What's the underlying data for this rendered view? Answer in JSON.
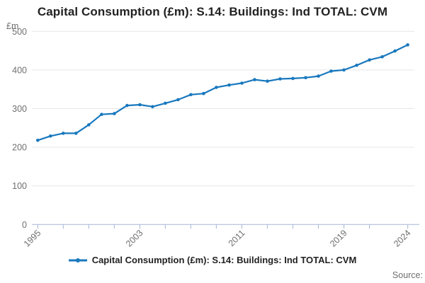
{
  "title": "Capital Consumption (£m): S.14: Buildings: Ind TOTAL: CVM",
  "y_unit": "£m",
  "legend": {
    "label": "Capital Consumption (£m): S.14: Buildings: Ind TOTAL: CVM"
  },
  "source": "Source:",
  "colors": {
    "line": "#1878be",
    "grid": "#e6e6e6",
    "axis": "#b0c0da",
    "tick_text": "#6f6f6f",
    "title_text": "#222222",
    "background": "#ffffff"
  },
  "chart_data": {
    "type": "line",
    "title": "Capital Consumption (£m): S.14: Buildings: Ind TOTAL: CVM",
    "series_name": "Capital Consumption (£m): S.14: Buildings: Ind TOTAL: CVM",
    "ylabel": "£m",
    "xlabel": "",
    "ylim": [
      0,
      500
    ],
    "y_ticks": [
      0,
      100,
      200,
      300,
      400,
      500
    ],
    "x_tick_years": [
      1995,
      1997,
      1999,
      2001,
      2003,
      2005,
      2007,
      2009,
      2011,
      2013,
      2015,
      2017,
      2019,
      2021,
      2024
    ],
    "x_label_years": [
      1995,
      2003,
      2011,
      2019,
      2024
    ],
    "grid": "horizontal",
    "legend_position": "bottom",
    "x": [
      1995,
      1996,
      1997,
      1998,
      1999,
      2000,
      2001,
      2002,
      2003,
      2004,
      2005,
      2006,
      2007,
      2008,
      2009,
      2010,
      2011,
      2012,
      2013,
      2014,
      2015,
      2016,
      2017,
      2018,
      2019,
      2020,
      2021,
      2022,
      2023,
      2024
    ],
    "values": [
      218,
      229,
      236,
      236,
      258,
      285,
      287,
      308,
      310,
      305,
      314,
      323,
      336,
      339,
      355,
      361,
      366,
      375,
      371,
      377,
      378,
      380,
      384,
      397,
      400,
      412,
      426,
      434,
      449,
      465
    ]
  }
}
